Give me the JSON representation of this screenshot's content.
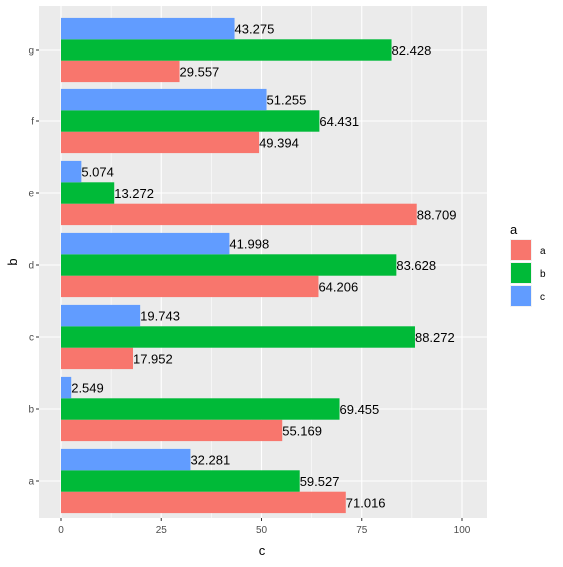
{
  "chart_data": {
    "type": "bar",
    "orientation": "horizontal",
    "position": "dodge",
    "xlabel": "c",
    "ylabel": "b",
    "xlim": [
      0,
      100
    ],
    "x_ticks": [
      "0",
      "25",
      "50",
      "75",
      "100"
    ],
    "categories": [
      "a",
      "b",
      "c",
      "d",
      "e",
      "f",
      "g"
    ],
    "series": [
      {
        "name": "a",
        "color": "#F8766D",
        "values": [
          71.016,
          55.169,
          17.952,
          64.206,
          88.709,
          49.394,
          29.557
        ],
        "labels": [
          "71.016",
          "55.169",
          "17.952",
          "64.206",
          "88.709",
          "49.394",
          "29.557"
        ]
      },
      {
        "name": "b",
        "color": "#00BA38",
        "values": [
          59.527,
          69.455,
          88.272,
          83.628,
          13.272,
          64.431,
          82.428
        ],
        "labels": [
          "59.527",
          "69.455",
          "88.272",
          "83.628",
          "13.272",
          "64.431",
          "82.428"
        ]
      },
      {
        "name": "c",
        "color": "#619CFF",
        "values": [
          32.281,
          2.549,
          19.743,
          41.998,
          5.074,
          51.255,
          43.275
        ],
        "labels": [
          "32.281",
          "2.549",
          "19.743",
          "41.998",
          "5.074",
          "51.255",
          "43.275"
        ]
      }
    ],
    "legend": {
      "title": "a",
      "placement": "right"
    },
    "grid": true,
    "panel_background": "#EBEBEB",
    "gridline_color": "#FFFFFF"
  }
}
